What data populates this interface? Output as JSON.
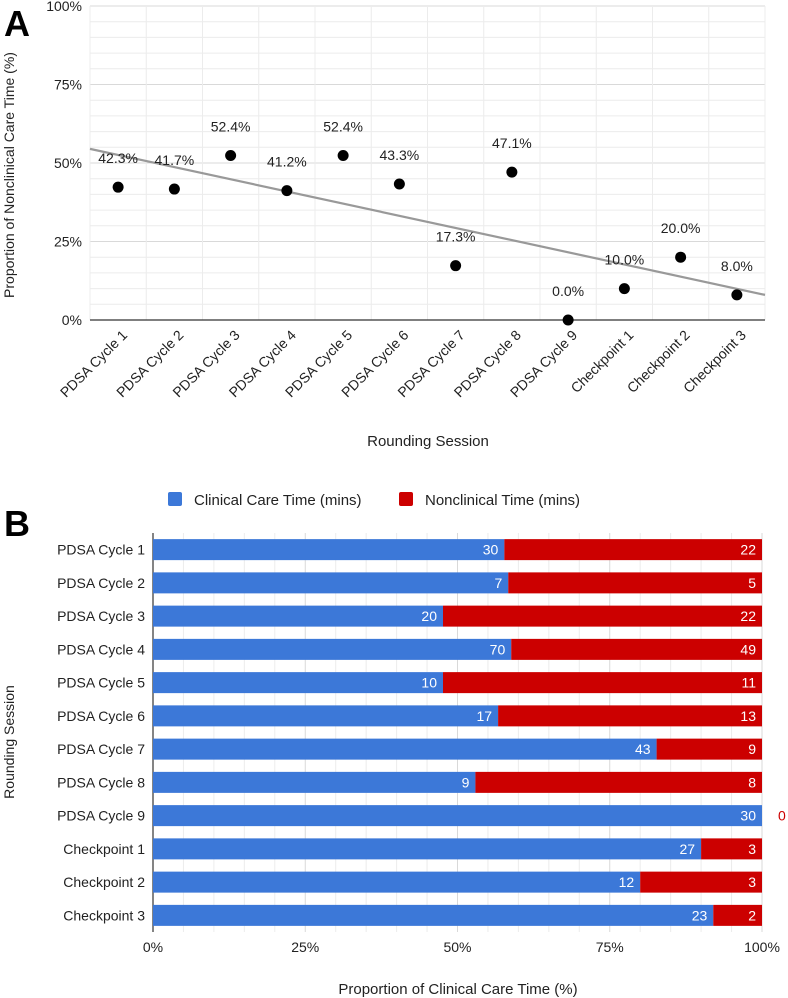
{
  "panel_a_letter": "A",
  "panel_b_letter": "B",
  "colors": {
    "clinical": "#3c78d8",
    "nonclinical": "#cc0000",
    "point": "#000000",
    "trendline": "#999999",
    "grid": "#d9d9d9",
    "axis": "#333333",
    "text": "#222222"
  },
  "chart_data": [
    {
      "type": "scatter",
      "panel": "A",
      "title": "",
      "xlabel": "Rounding Session",
      "ylabel": "Proportion of Nonclinical Care Time (%)",
      "categories": [
        "PDSA Cycle 1",
        "PDSA Cycle 2",
        "PDSA Cycle 3",
        "PDSA Cycle 4",
        "PDSA Cycle 5",
        "PDSA Cycle 6",
        "PDSA Cycle 7",
        "PDSA Cycle 8",
        "PDSA Cycle 9",
        "Checkpoint 1",
        "Checkpoint 2",
        "Checkpoint 3"
      ],
      "values": [
        42.3,
        41.7,
        52.4,
        41.2,
        52.4,
        43.3,
        17.3,
        47.1,
        0.0,
        10.0,
        20.0,
        8.0
      ],
      "data_labels": [
        "42.3%",
        "41.7%",
        "52.4%",
        "41.2%",
        "52.4%",
        "43.3%",
        "17.3%",
        "47.1%",
        "0.0%",
        "10.0%",
        "20.0%",
        "8.0%"
      ],
      "yticks": [
        0,
        25,
        50,
        75,
        100
      ],
      "ytick_labels": [
        "0%",
        "25%",
        "50%",
        "75%",
        "100%"
      ],
      "ylim": [
        0,
        100
      ],
      "trendline": {
        "type": "linear",
        "start": 54.5,
        "end": 8.0
      },
      "grid": true
    },
    {
      "type": "bar",
      "orientation": "horizontal",
      "stacked": "percent",
      "panel": "B",
      "title": "",
      "xlabel": "Proportion of Clinical Care Time (%)",
      "ylabel": "Rounding Session",
      "legend_position": "top",
      "categories": [
        "PDSA Cycle 1",
        "PDSA Cycle 2",
        "PDSA Cycle 3",
        "PDSA Cycle 4",
        "PDSA Cycle 5",
        "PDSA Cycle 6",
        "PDSA Cycle 7",
        "PDSA Cycle 8",
        "PDSA Cycle 9",
        "Checkpoint 1",
        "Checkpoint 2",
        "Checkpoint 3"
      ],
      "series": [
        {
          "name": "Clinical Care Time (mins)",
          "values": [
            30,
            7,
            20,
            70,
            10,
            17,
            43,
            9,
            30,
            27,
            12,
            23
          ]
        },
        {
          "name": "Nonclinical Time (mins)",
          "values": [
            22,
            5,
            22,
            49,
            11,
            13,
            9,
            8,
            0,
            3,
            3,
            2
          ]
        }
      ],
      "xticks": [
        0,
        25,
        50,
        75,
        100
      ],
      "xtick_labels": [
        "0%",
        "25%",
        "50%",
        "75%",
        "100%"
      ],
      "xlim": [
        0,
        100
      ],
      "grid": true
    }
  ]
}
